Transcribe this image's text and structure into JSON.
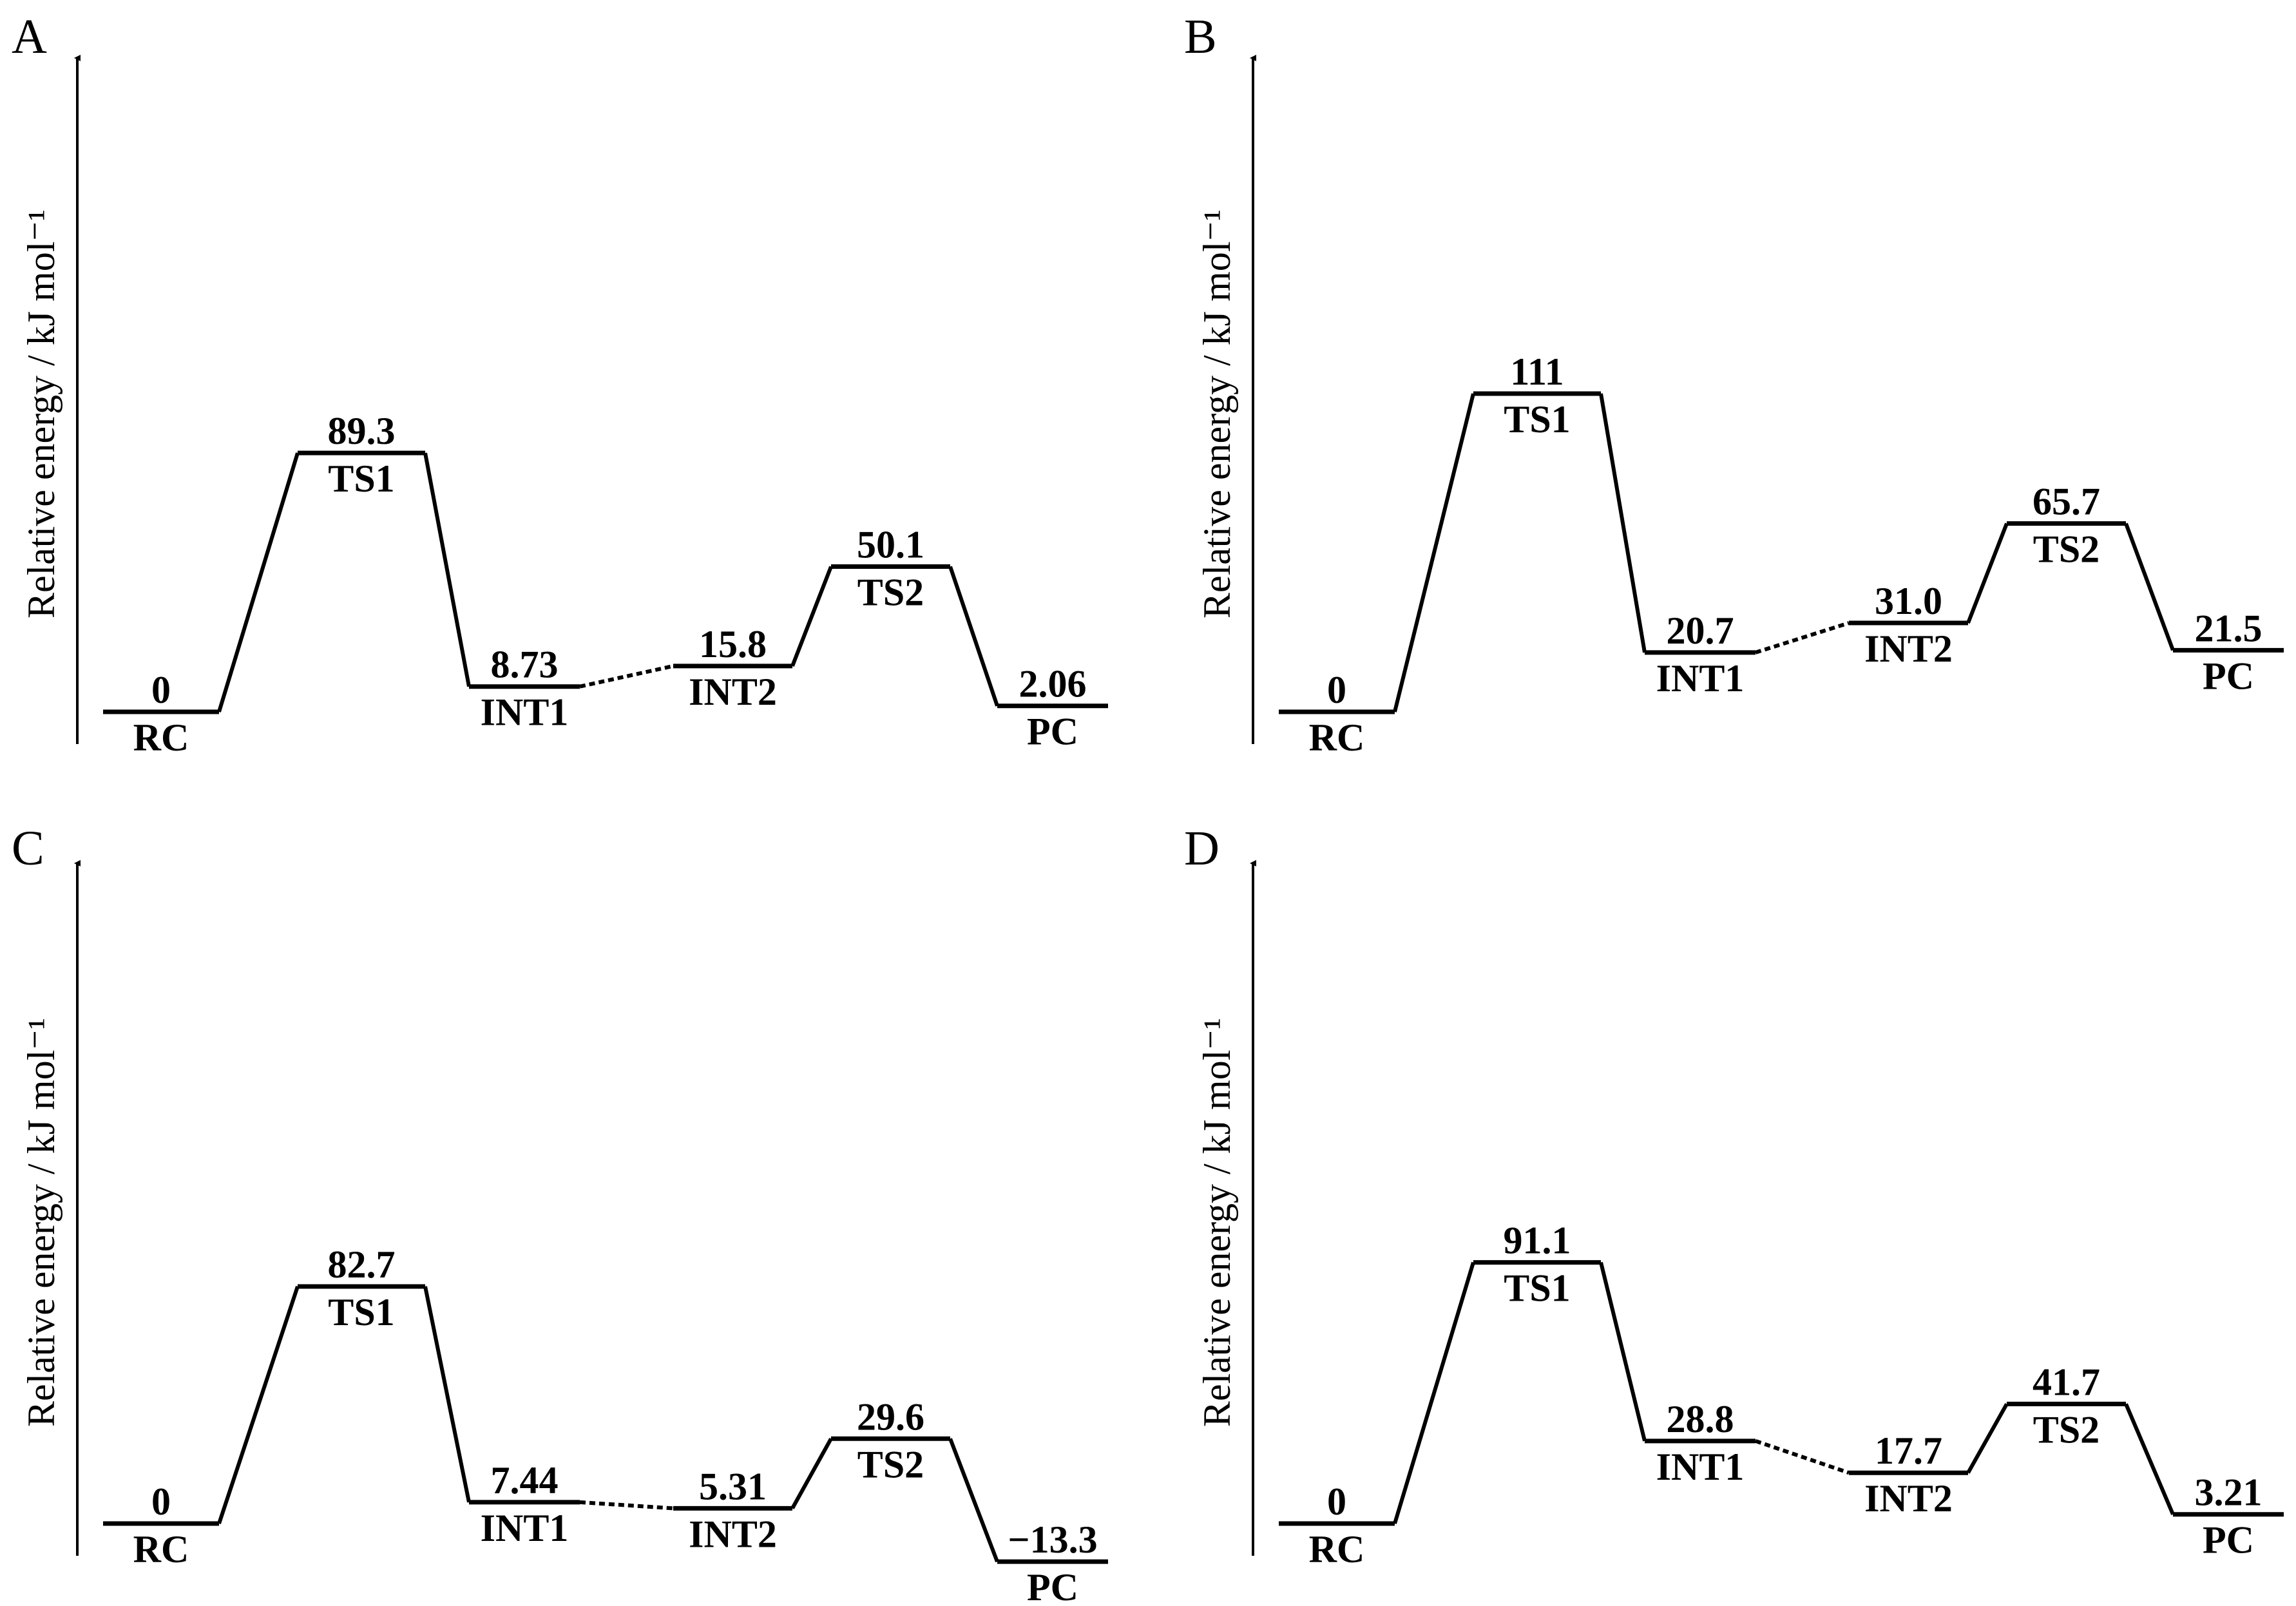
{
  "chart_data": [
    {
      "type": "energy-profile",
      "panel": "A",
      "ylabel": "Relative energy / kJ mol⁻¹",
      "states": [
        {
          "name": "RC",
          "value": 0,
          "value_text": "0"
        },
        {
          "name": "TS1",
          "value": 89.3,
          "value_text": "89.3"
        },
        {
          "name": "INT1",
          "value": 8.73,
          "value_text": "8.73"
        },
        {
          "name": "INT2",
          "value": 15.8,
          "value_text": "15.8"
        },
        {
          "name": "TS2",
          "value": 50.1,
          "value_text": "50.1"
        },
        {
          "name": "PC",
          "value": 2.06,
          "value_text": "2.06"
        }
      ]
    },
    {
      "type": "energy-profile",
      "panel": "B",
      "ylabel": "Relative energy / kJ mol⁻¹",
      "states": [
        {
          "name": "RC",
          "value": 0,
          "value_text": "0"
        },
        {
          "name": "TS1",
          "value": 111,
          "value_text": "111"
        },
        {
          "name": "INT1",
          "value": 20.7,
          "value_text": "20.7"
        },
        {
          "name": "INT2",
          "value": 31.0,
          "value_text": "31.0"
        },
        {
          "name": "TS2",
          "value": 65.7,
          "value_text": "65.7"
        },
        {
          "name": "PC",
          "value": 21.5,
          "value_text": "21.5"
        }
      ]
    },
    {
      "type": "energy-profile",
      "panel": "C",
      "ylabel": "Relative energy / kJ mol⁻¹",
      "states": [
        {
          "name": "RC",
          "value": 0,
          "value_text": "0"
        },
        {
          "name": "TS1",
          "value": 82.7,
          "value_text": "82.7"
        },
        {
          "name": "INT1",
          "value": 7.44,
          "value_text": "7.44"
        },
        {
          "name": "INT2",
          "value": 5.31,
          "value_text": "5.31"
        },
        {
          "name": "TS2",
          "value": 29.6,
          "value_text": "29.6"
        },
        {
          "name": "PC",
          "value": -13.3,
          "value_text": "−13.3"
        }
      ]
    },
    {
      "type": "energy-profile",
      "panel": "D",
      "ylabel": "Relative energy / kJ mol⁻¹",
      "states": [
        {
          "name": "RC",
          "value": 0,
          "value_text": "0"
        },
        {
          "name": "TS1",
          "value": 91.1,
          "value_text": "91.1"
        },
        {
          "name": "INT1",
          "value": 28.8,
          "value_text": "28.8"
        },
        {
          "name": "INT2",
          "value": 17.7,
          "value_text": "17.7"
        },
        {
          "name": "TS2",
          "value": 41.7,
          "value_text": "41.7"
        },
        {
          "name": "PC",
          "value": 3.21,
          "value_text": "3.21"
        }
      ]
    }
  ]
}
